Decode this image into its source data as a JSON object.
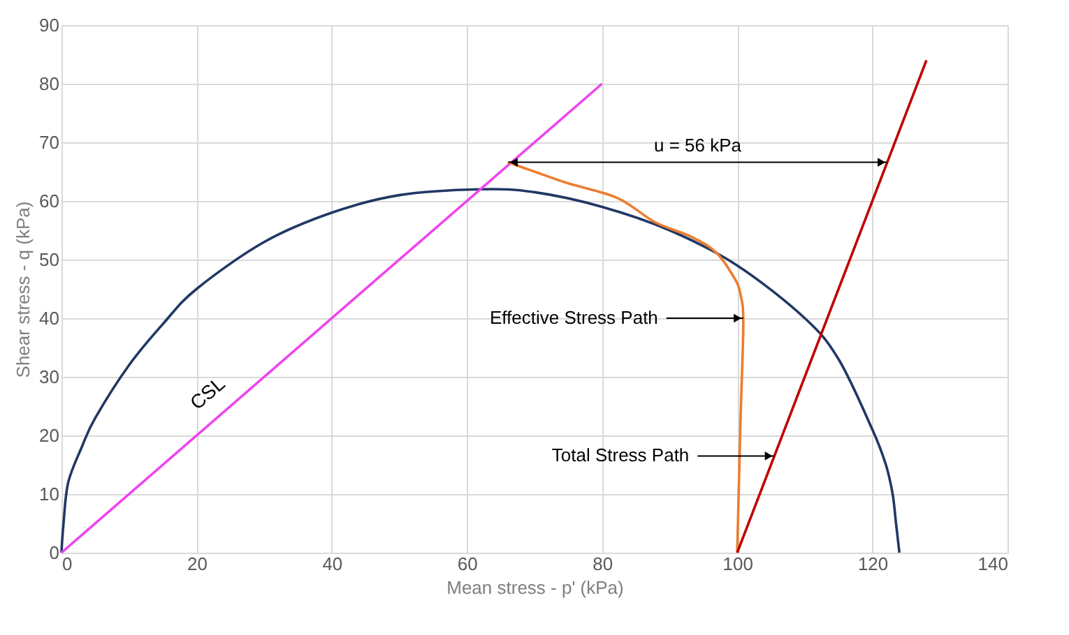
{
  "chart_data": {
    "type": "line",
    "xlabel": "Mean stress - p' (kPa)",
    "ylabel": "Shear stress - q (kPa)",
    "xlim": [
      0,
      140
    ],
    "ylim": [
      0,
      90
    ],
    "xticks": [
      0,
      20,
      40,
      60,
      80,
      100,
      120,
      140
    ],
    "yticks": [
      0,
      10,
      20,
      30,
      40,
      50,
      60,
      70,
      80,
      90
    ],
    "grid": true,
    "marker": "none",
    "line_style": "solid",
    "series": [
      {
        "color": "#203864",
        "x": [
          0,
          0.3,
          1,
          3,
          5,
          10,
          15,
          20,
          30,
          40,
          50,
          62,
          70,
          80,
          90,
          100,
          110,
          115,
          120,
          122,
          123,
          123.5,
          124
        ],
        "values": [
          0,
          5,
          12,
          18,
          23,
          32,
          39,
          45,
          53,
          58,
          61,
          62,
          61.5,
          59,
          55,
          49,
          40,
          33,
          21,
          15,
          10,
          5,
          0
        ]
      },
      {
        "name": "CSL",
        "color": "#ee44ee",
        "x": [
          0,
          80
        ],
        "values": [
          0,
          80
        ]
      },
      {
        "color": "#ed7d31",
        "x": [
          100,
          100.5,
          100.9,
          100.5,
          99.5,
          96.8,
          93,
          87.8,
          82.3,
          75,
          70,
          66.1
        ],
        "values": [
          0,
          23,
          39,
          44,
          47,
          51.3,
          54,
          56.4,
          60.5,
          63,
          65,
          66.6
        ]
      },
      {
        "color": "#c00000",
        "x": [
          100,
          128
        ],
        "values": [
          0,
          84
        ]
      }
    ],
    "annotations": [
      "u = 56 kPa",
      {
        "text": "Effective Stress Path",
        "x": 100.9,
        "y": 40
      },
      {
        "text": "Total Stress Path",
        "x": 105.5,
        "y": 16.5
      }
    ]
  }
}
